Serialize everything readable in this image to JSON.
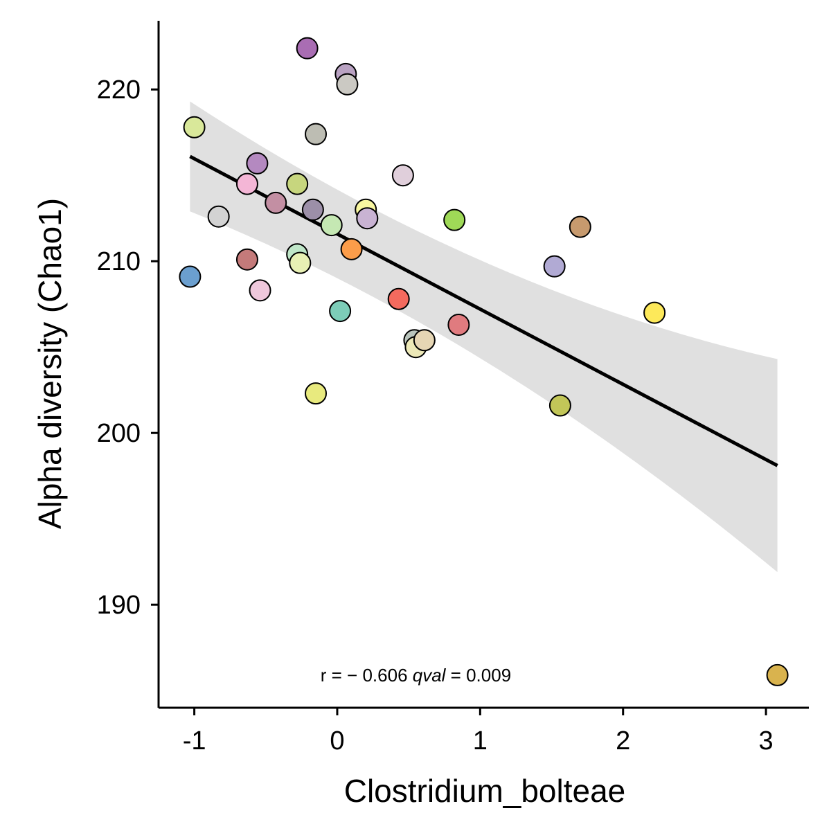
{
  "chart_data": {
    "type": "scatter",
    "xlabel": "Clostridium_bolteae",
    "ylabel": "Alpha diversity (Chao1)",
    "xlim": [
      -1.25,
      3.3
    ],
    "ylim": [
      184,
      224
    ],
    "x_ticks": [
      -1,
      0,
      1,
      2,
      3
    ],
    "x_tick_labels": [
      "-1",
      "0",
      "1",
      "2",
      "3"
    ],
    "y_ticks": [
      190,
      200,
      210,
      220
    ],
    "y_tick_labels": [
      "190",
      "200",
      "210",
      "220"
    ],
    "grid": false,
    "annotation": {
      "prefix": "r = − 0.606 ",
      "italic": "qval",
      "suffix": " = 0.009",
      "x": 0.55,
      "y": 185.9
    },
    "regression": {
      "x": [
        -1.03,
        3.08
      ],
      "y": [
        216.1,
        198.1
      ],
      "ci_lower": [
        212.9,
        191.9
      ],
      "ci_upper": [
        219.3,
        204.3
      ],
      "ci_fill": "#e0e0e0",
      "line_color": "#000000"
    },
    "points": [
      {
        "x": -1.03,
        "y": 209.1,
        "color": "#6b9fcf"
      },
      {
        "x": -1.0,
        "y": 217.8,
        "color": "#d9e89a"
      },
      {
        "x": -0.83,
        "y": 212.6,
        "color": "#d3d3d3"
      },
      {
        "x": -0.63,
        "y": 214.5,
        "color": "#f4b6d6"
      },
      {
        "x": -0.63,
        "y": 210.1,
        "color": "#c47a7a"
      },
      {
        "x": -0.56,
        "y": 215.7,
        "color": "#b489c0"
      },
      {
        "x": -0.54,
        "y": 208.3,
        "color": "#efc8dc"
      },
      {
        "x": -0.43,
        "y": 213.4,
        "color": "#c38fa3"
      },
      {
        "x": -0.28,
        "y": 214.5,
        "color": "#c7d67e"
      },
      {
        "x": -0.28,
        "y": 210.4,
        "color": "#bfe6c8"
      },
      {
        "x": -0.26,
        "y": 209.9,
        "color": "#e8f0b4"
      },
      {
        "x": -0.21,
        "y": 222.4,
        "color": "#a96db3"
      },
      {
        "x": -0.17,
        "y": 213.0,
        "color": "#9c8fa8"
      },
      {
        "x": -0.15,
        "y": 217.4,
        "color": "#bdbdb3"
      },
      {
        "x": -0.15,
        "y": 202.3,
        "color": "#e8ea7e"
      },
      {
        "x": -0.04,
        "y": 212.1,
        "color": "#c5e8b3"
      },
      {
        "x": 0.02,
        "y": 207.1,
        "color": "#7dcdb8"
      },
      {
        "x": 0.06,
        "y": 220.9,
        "color": "#b9a2c2"
      },
      {
        "x": 0.07,
        "y": 220.3,
        "color": "#cbc9c3"
      },
      {
        "x": 0.1,
        "y": 210.7,
        "color": "#fc9d4a"
      },
      {
        "x": 0.2,
        "y": 213.0,
        "color": "#f8f6a0"
      },
      {
        "x": 0.21,
        "y": 212.5,
        "color": "#c9b3d3"
      },
      {
        "x": 0.43,
        "y": 207.8,
        "color": "#f46a5e"
      },
      {
        "x": 0.46,
        "y": 215.0,
        "color": "#e0cfdb"
      },
      {
        "x": 0.54,
        "y": 205.4,
        "color": "#b9c4bc"
      },
      {
        "x": 0.55,
        "y": 205.0,
        "color": "#ede9b8"
      },
      {
        "x": 0.61,
        "y": 205.4,
        "color": "#e6d6b4"
      },
      {
        "x": 0.82,
        "y": 212.4,
        "color": "#9fd957"
      },
      {
        "x": 0.85,
        "y": 206.3,
        "color": "#e07b7f"
      },
      {
        "x": 1.52,
        "y": 209.7,
        "color": "#b1aad4"
      },
      {
        "x": 1.56,
        "y": 201.6,
        "color": "#c2c658"
      },
      {
        "x": 1.7,
        "y": 212.0,
        "color": "#c79a6e"
      },
      {
        "x": 2.22,
        "y": 207.0,
        "color": "#fde95a"
      },
      {
        "x": 3.08,
        "y": 185.9,
        "color": "#d9b34e"
      }
    ]
  }
}
